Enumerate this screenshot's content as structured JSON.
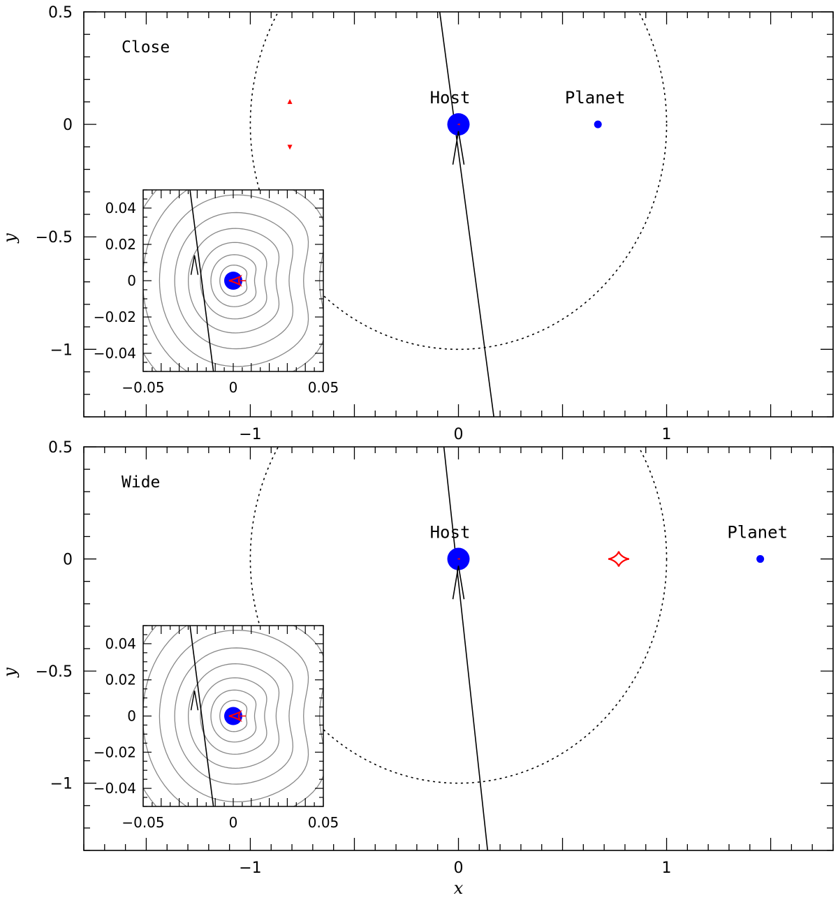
{
  "chart_data": [
    {
      "type": "scatter",
      "panel": "Close",
      "panel_label": "Close",
      "xlabel": "",
      "ylabel": "y",
      "xlim": [
        -1.8,
        1.8
      ],
      "ylim": [
        -1.3,
        0.5
      ],
      "x_ticks": [
        -1,
        0,
        1
      ],
      "x_tick_labels": [
        "−1",
        "0",
        "1"
      ],
      "y_ticks": [
        -1,
        -0.5,
        0,
        0.5
      ],
      "y_tick_labels": [
        "−1",
        "−0.5",
        "0",
        "0.5"
      ],
      "host": {
        "label": "Host",
        "x": 0,
        "y": 0
      },
      "planet": {
        "label": "Planet",
        "x": 0.67,
        "y": 0
      },
      "einstein_ring": {
        "center_x": 0,
        "center_y": 0,
        "radius": 1.0
      },
      "source_trajectory": {
        "x1": -0.09,
        "y1": 0.5,
        "x2": 0.17,
        "y2": -1.3,
        "arrow_at": {
          "x": 0,
          "y": -0.03
        }
      },
      "planetary_caustics": [
        {
          "x": -0.81,
          "y": 0.1,
          "marker": "triangle-up"
        },
        {
          "x": -0.81,
          "y": -0.1,
          "marker": "triangle-down"
        }
      ],
      "colors": {
        "lens": "#0000ff",
        "caustic": "#ff0000",
        "contour": "#888888",
        "line": "#000000"
      },
      "inset": {
        "xlim": [
          -0.05,
          0.05
        ],
        "ylim": [
          -0.05,
          0.05
        ],
        "x_tick_labels": [
          "−0.05",
          "0",
          "0.05"
        ],
        "y_tick_labels": [
          "−0.04",
          "−0.02",
          "0",
          "0.02",
          "0.04"
        ],
        "contour_levels": 10,
        "trajectory": {
          "x1": -0.024,
          "y1": 0.05,
          "x2": -0.011,
          "y2": -0.05
        }
      }
    },
    {
      "type": "scatter",
      "panel": "Wide",
      "panel_label": "Wide",
      "xlabel": "x",
      "ylabel": "y",
      "xlim": [
        -1.8,
        1.8
      ],
      "ylim": [
        -1.3,
        0.5
      ],
      "x_ticks": [
        -1,
        0,
        1
      ],
      "x_tick_labels": [
        "−1",
        "0",
        "1"
      ],
      "y_ticks": [
        -1,
        -0.5,
        0,
        0.5
      ],
      "y_tick_labels": [
        "−1",
        "−0.5",
        "0",
        "0.5"
      ],
      "host": {
        "label": "Host",
        "x": 0,
        "y": 0
      },
      "planet": {
        "label": "Planet",
        "x": 1.45,
        "y": 0
      },
      "einstein_ring": {
        "center_x": 0,
        "center_y": 0,
        "radius": 1.0
      },
      "source_trajectory": {
        "x1": -0.07,
        "y1": 0.5,
        "x2": 0.14,
        "y2": -1.3,
        "arrow_at": {
          "x": 0,
          "y": -0.03
        }
      },
      "planetary_caustics": [
        {
          "x": 0.77,
          "y": 0,
          "marker": "astroid"
        }
      ],
      "colors": {
        "lens": "#0000ff",
        "caustic": "#ff0000",
        "contour": "#888888",
        "line": "#000000"
      },
      "inset": {
        "xlim": [
          -0.05,
          0.05
        ],
        "ylim": [
          -0.05,
          0.05
        ],
        "x_tick_labels": [
          "−0.05",
          "0",
          "0.05"
        ],
        "y_tick_labels": [
          "−0.04",
          "−0.02",
          "0",
          "0.02",
          "0.04"
        ],
        "contour_levels": 10,
        "trajectory": {
          "x1": -0.024,
          "y1": 0.05,
          "x2": -0.011,
          "y2": -0.05
        }
      }
    }
  ]
}
